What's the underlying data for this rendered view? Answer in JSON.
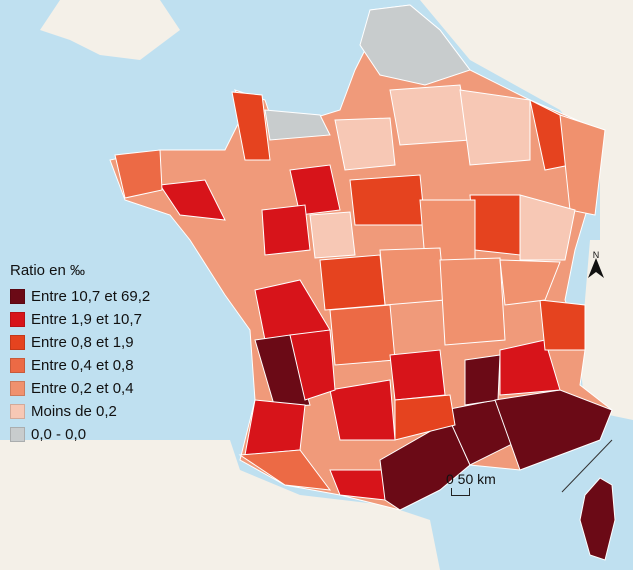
{
  "legend": {
    "title": "Ratio en ‰",
    "items": [
      {
        "label": "Entre 10,7 et 69,2",
        "color": "#6b0a16"
      },
      {
        "label": "Entre 1,9 et 10,7",
        "color": "#d7141a"
      },
      {
        "label": "Entre 0,8 et 1,9",
        "color": "#e5431f"
      },
      {
        "label": "Entre 0,4 et 0,8",
        "color": "#ec6a45"
      },
      {
        "label": "Entre 0,2 et 0,4",
        "color": "#f0916e"
      },
      {
        "label": "Moins de 0,2",
        "color": "#f7c8b5"
      },
      {
        "label": "0,0 - 0,0",
        "color": "#c8cccd"
      }
    ]
  },
  "scale": {
    "label": "0  50 km"
  },
  "north": {
    "label": "N"
  },
  "colors": {
    "sea": "#bfe0f0",
    "land": "#f4f0e8",
    "border": "#ffffff"
  }
}
